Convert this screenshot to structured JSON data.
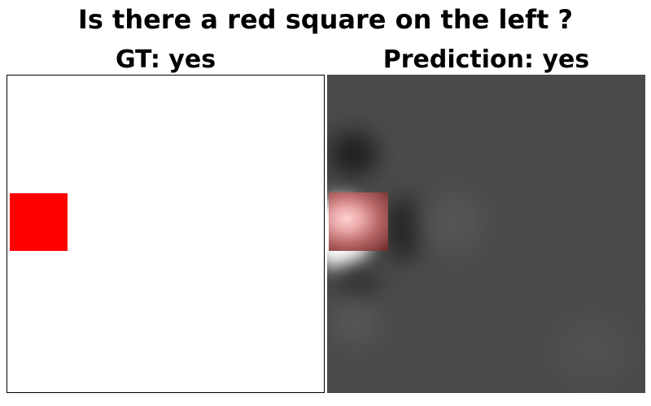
{
  "title": "Is there a red square on the left ?",
  "panels": {
    "ground_truth": {
      "label": "GT: yes",
      "background": "#ffffff",
      "square_color": "#ff0000"
    },
    "prediction": {
      "label": "Prediction: yes",
      "background": "#4b4b4b",
      "highlight_color": "#ffd0d0"
    }
  }
}
